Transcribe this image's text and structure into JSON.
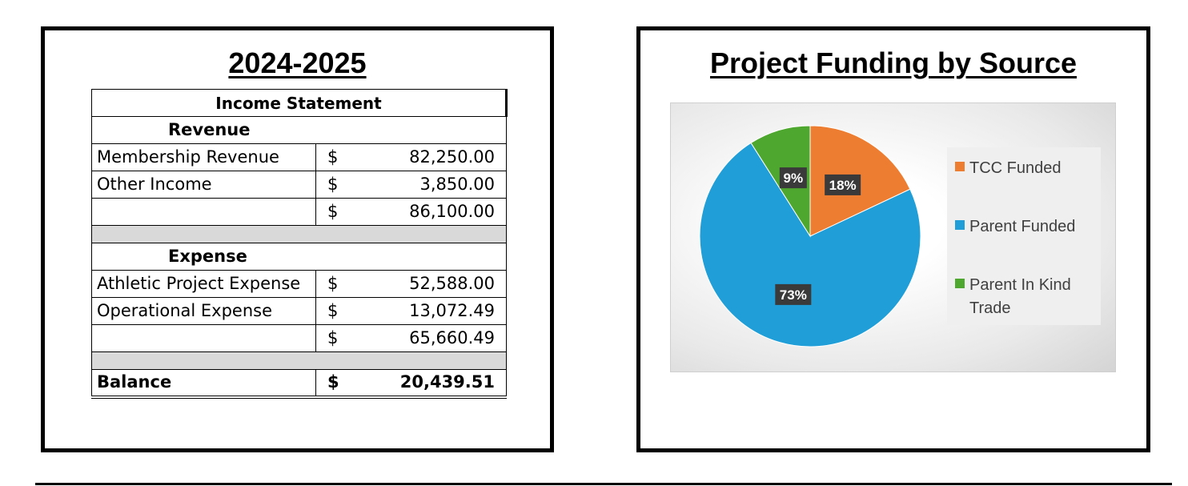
{
  "left_panel": {
    "title": "2024-2025",
    "table": {
      "header": "Income Statement",
      "revenue_label": "Revenue",
      "revenue_rows": [
        {
          "label": "Membership Revenue",
          "currency": "$",
          "amount": "82,250.00"
        },
        {
          "label": "Other Income",
          "currency": "$",
          "amount": "3,850.00"
        }
      ],
      "revenue_total": {
        "currency": "$",
        "amount": "86,100.00"
      },
      "expense_label": "Expense",
      "expense_rows": [
        {
          "label": "Athletic Project Expense",
          "currency": "$",
          "amount": "52,588.00"
        },
        {
          "label": "Operational Expense",
          "currency": "$",
          "amount": "13,072.49"
        }
      ],
      "expense_total": {
        "currency": "$",
        "amount": "65,660.49"
      },
      "balance": {
        "label": "Balance",
        "currency": "$",
        "amount": "20,439.51"
      }
    }
  },
  "right_panel": {
    "title": "Project Funding by Source"
  },
  "chart_data": {
    "type": "pie",
    "title": "Project Funding by Source",
    "legend_position": "right",
    "slices": [
      {
        "name": "TCC Funded",
        "value": 18,
        "label": "18%",
        "color": "#ED7D31"
      },
      {
        "name": "Parent Funded",
        "value": 73,
        "label": "73%",
        "color": "#1F9ED8"
      },
      {
        "name": "Parent In Kind Trade",
        "value": 9,
        "label": "9%",
        "color": "#4EA72E"
      }
    ]
  }
}
